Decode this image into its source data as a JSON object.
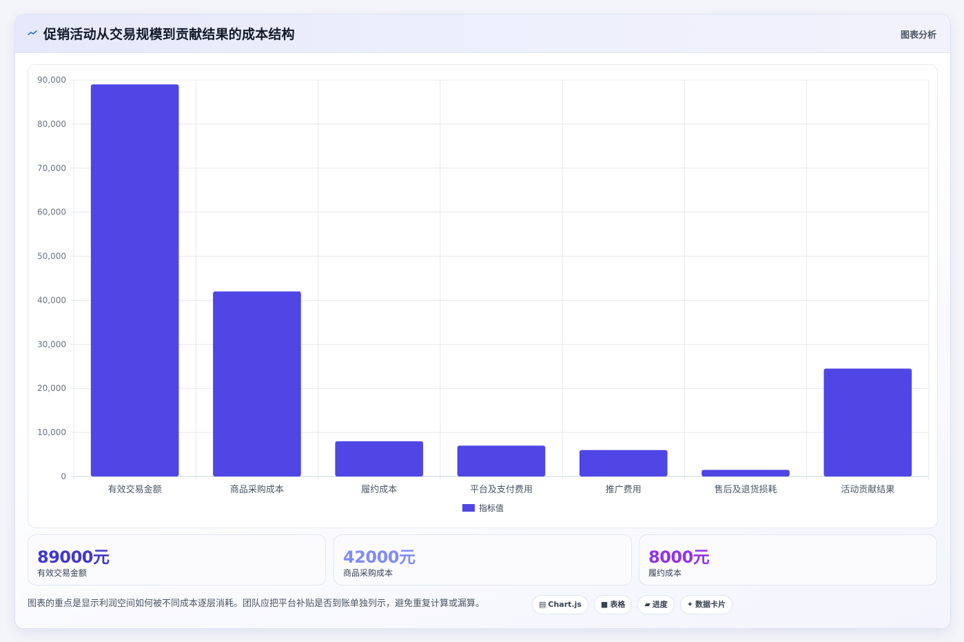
{
  "header": {
    "title": "促销活动从交易规模到贡献结果的成本结构",
    "tag": "图表分析",
    "icon": "trend-line-icon"
  },
  "chart_data": {
    "type": "bar",
    "categories": [
      "有效交易金额",
      "商品采购成本",
      "履约成本",
      "平台及支付费用",
      "推广费用",
      "售后及退货损耗",
      "活动贡献结果"
    ],
    "series": [
      {
        "name": "指标值",
        "values": [
          89000,
          42000,
          8000,
          7000,
          6000,
          1500,
          24500
        ],
        "color": "#4f46e5"
      }
    ],
    "ylim": [
      0,
      90000
    ],
    "yticks": [
      "0",
      "10,000",
      "20,000",
      "30,000",
      "40,000",
      "50,000",
      "60,000",
      "70,000",
      "80,000",
      "90,000"
    ],
    "grid": true,
    "legend": "bottom-center"
  },
  "kpis": [
    {
      "value": "89000元",
      "label": "有效交易金额",
      "color": "#4338ca"
    },
    {
      "value": "42000元",
      "label": "商品采购成本",
      "color": "#818cf8"
    },
    {
      "value": "8000元",
      "label": "履约成本",
      "color": "#9333ea"
    }
  ],
  "footer": {
    "note": "图表的重点是显示利润空间如何被不同成本逐层消耗。团队应把平台补贴是否到账单独列示，避免重复计算或漏算。",
    "chips": [
      {
        "icon": "chart-icon",
        "glyph": "▤",
        "label": "Chart.js"
      },
      {
        "icon": "table-icon",
        "glyph": "■",
        "label": "表格"
      },
      {
        "icon": "progress-icon",
        "glyph": "▰",
        "label": "进度"
      },
      {
        "icon": "data-card-icon",
        "glyph": "✦",
        "label": "数据卡片"
      }
    ]
  }
}
